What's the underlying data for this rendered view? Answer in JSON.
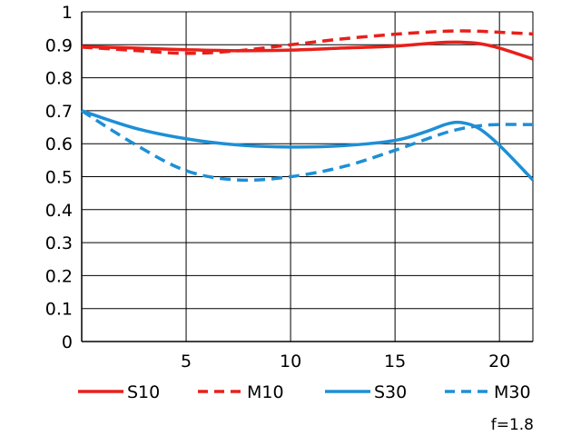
{
  "chart_data": {
    "type": "line",
    "title": "",
    "xlabel": "",
    "ylabel": "",
    "xlim": [
      0,
      21.6
    ],
    "ylim": [
      0,
      1
    ],
    "x_ticks": [
      5,
      10,
      15,
      20
    ],
    "x_tick_labels": [
      "5",
      "10",
      "15",
      "20"
    ],
    "y_ticks": [
      0,
      0.1,
      0.2,
      0.3,
      0.4,
      0.5,
      0.6,
      0.7,
      0.8,
      0.9,
      1
    ],
    "y_tick_labels": [
      "0",
      "0.1",
      "0.2",
      "0.3",
      "0.4",
      "0.5",
      "0.6",
      "0.7",
      "0.8",
      "0.9",
      "1"
    ],
    "grid": true,
    "legend_position": "bottom",
    "note": "f=1.8",
    "series": [
      {
        "name": "S10",
        "color": "#e8201a",
        "dash": "solid",
        "x": [
          0,
          2.5,
          5,
          7.5,
          10,
          12.5,
          15,
          17,
          18,
          19,
          20,
          21.6
        ],
        "y": [
          0.895,
          0.89,
          0.885,
          0.882,
          0.884,
          0.89,
          0.896,
          0.906,
          0.908,
          0.904,
          0.89,
          0.857
        ]
      },
      {
        "name": "M10",
        "color": "#e8201a",
        "dash": "dashed",
        "x": [
          0,
          2.5,
          5,
          7.5,
          10,
          12.5,
          15,
          17,
          18,
          19,
          20,
          21.6
        ],
        "y": [
          0.893,
          0.883,
          0.874,
          0.882,
          0.9,
          0.918,
          0.932,
          0.94,
          0.942,
          0.941,
          0.938,
          0.933
        ]
      },
      {
        "name": "S30",
        "color": "#1e8fd6",
        "dash": "solid",
        "x": [
          0,
          2.5,
          5,
          7.5,
          10,
          12.5,
          15,
          16.5,
          17.5,
          18.2,
          19,
          20,
          21.6
        ],
        "y": [
          0.7,
          0.648,
          0.615,
          0.596,
          0.59,
          0.594,
          0.61,
          0.637,
          0.66,
          0.664,
          0.647,
          0.595,
          0.49
        ]
      },
      {
        "name": "M30",
        "color": "#1e8fd6",
        "dash": "dashed",
        "x": [
          0,
          2.5,
          5,
          7.5,
          10,
          12.5,
          15,
          17.5,
          19,
          20,
          21.6
        ],
        "y": [
          0.7,
          0.6,
          0.518,
          0.49,
          0.5,
          0.53,
          0.58,
          0.635,
          0.654,
          0.658,
          0.658
        ]
      }
    ]
  }
}
